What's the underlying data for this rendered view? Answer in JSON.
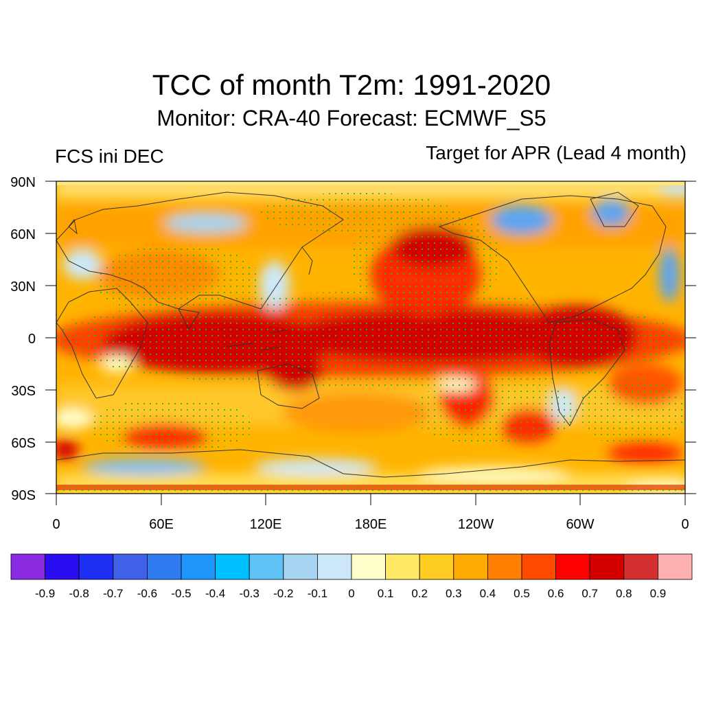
{
  "title": "TCC of month T2m: 1991-2020",
  "subtitle": "Monitor: CRA-40   Forecast: ECMWF_S5",
  "left_label": "FCS ini DEC",
  "right_label": "Target for APR (Lead 4 month)",
  "map": {
    "lat_ticks": [
      "90N",
      "60N",
      "30N",
      "0",
      "30S",
      "60S",
      "90S"
    ],
    "lon_ticks": [
      "0",
      "60E",
      "120E",
      "180E",
      "120W",
      "60W",
      "0"
    ],
    "land_line_color": "#333333",
    "stipple_color": "#22bb22"
  },
  "colorbar": {
    "colors": [
      "#8a2be2",
      "#2a0cf0",
      "#1e2ef2",
      "#4060e8",
      "#2f7cf2",
      "#1e96fa",
      "#00bfff",
      "#5fc4f5",
      "#a7d4f0",
      "#cce8f8",
      "#ffffcc",
      "#ffe866",
      "#ffcc22",
      "#ffaa00",
      "#ff7f00",
      "#ff4a00",
      "#ff0000",
      "#d40000",
      "#d43030",
      "#ffb0b0"
    ],
    "labels": [
      "-0.9",
      "-0.8",
      "-0.7",
      "-0.6",
      "-0.5",
      "-0.4",
      "-0.3",
      "-0.2",
      "-0.1",
      "0",
      "0.1",
      "0.2",
      "0.3",
      "0.4",
      "0.5",
      "0.6",
      "0.7",
      "0.8",
      "0.9"
    ]
  }
}
